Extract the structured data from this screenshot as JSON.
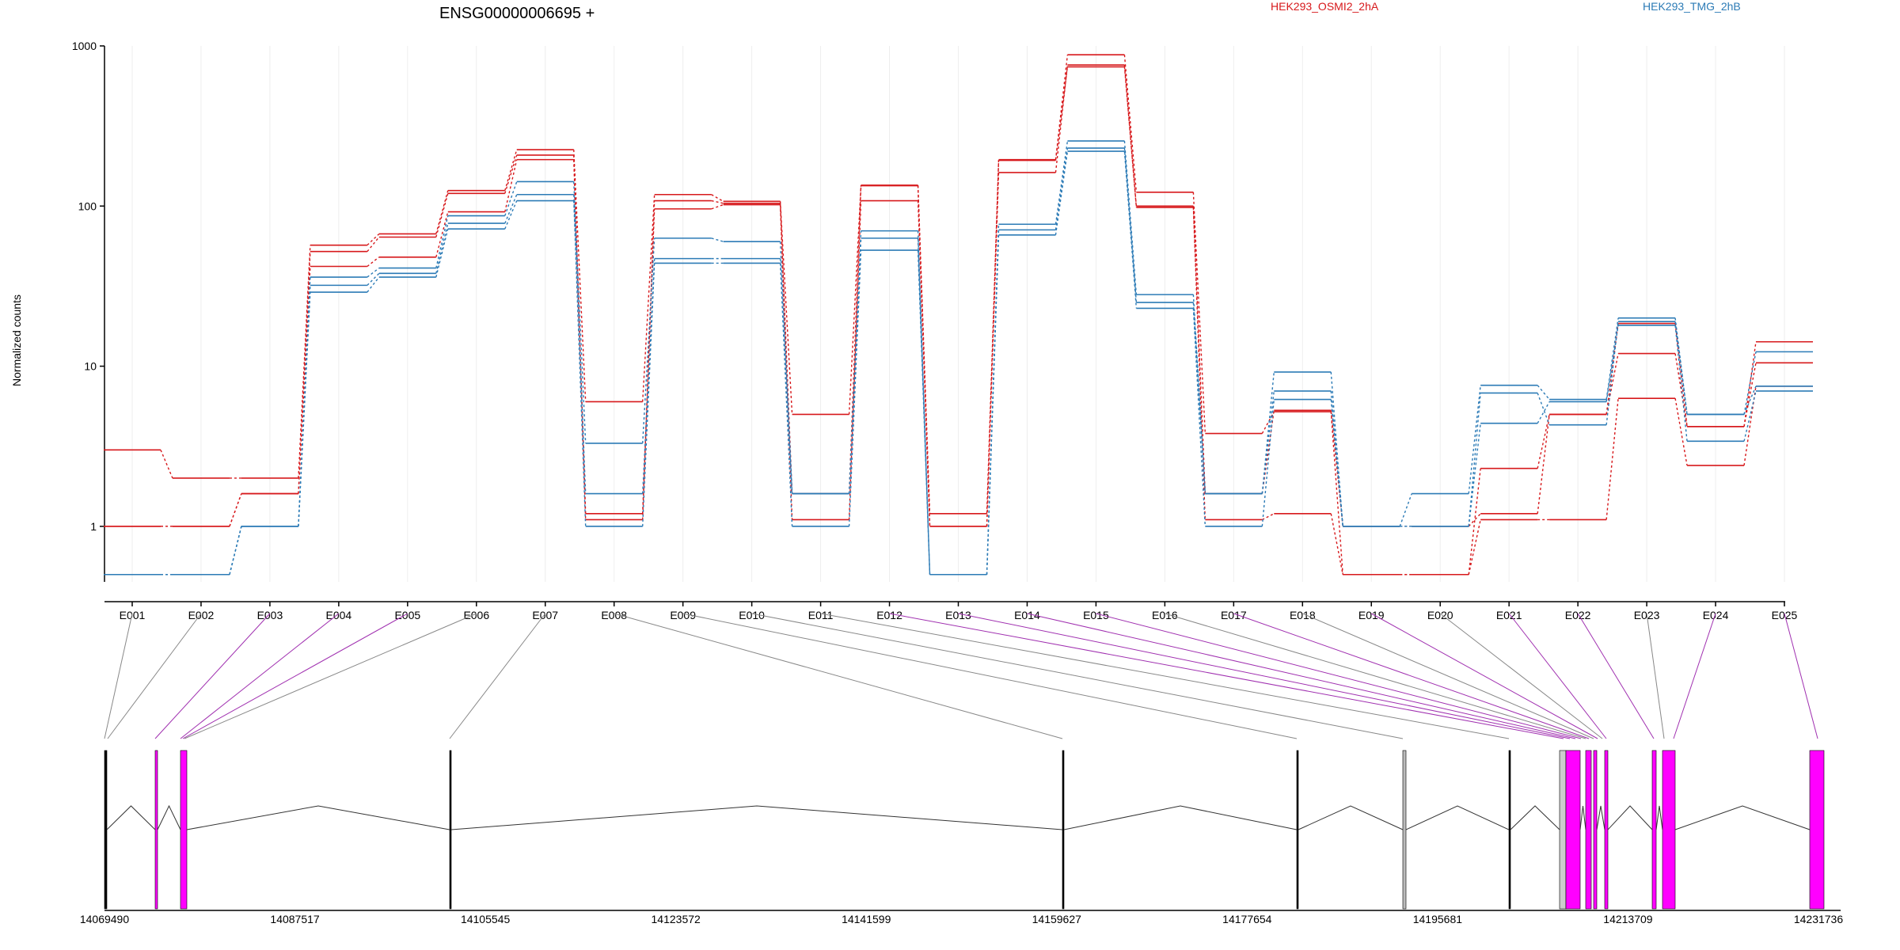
{
  "gene": {
    "title": "ENSG00000006695 +"
  },
  "legend": {
    "entries": [
      {
        "label": "HEK293_OSMI2_2hA",
        "color": "#d7191c"
      },
      {
        "label": "HEK293_TMG_2hB",
        "color": "#2c7bb6"
      }
    ]
  },
  "chart_data": {
    "type": "line",
    "ylabel": "Normalized counts",
    "yscale": "log",
    "ylim": [
      0.45,
      1000
    ],
    "yticks": [
      "1",
      "10",
      "100",
      "1000"
    ],
    "categories": [
      "E001",
      "E002",
      "E003",
      "E004",
      "E005",
      "E006",
      "E007",
      "E008",
      "E009",
      "E010",
      "E011",
      "E012",
      "E013",
      "E014",
      "E015",
      "E016",
      "E017",
      "E018",
      "E019",
      "E020",
      "E021",
      "E022",
      "E023",
      "E024",
      "E025"
    ],
    "series": [
      {
        "group": "HEK293_OSMI2_2hA",
        "values": [
          3.0,
          2.0,
          2.0,
          57,
          67,
          125,
          225,
          6.0,
          118,
          107,
          5.0,
          135,
          1.2,
          195,
          880,
          122,
          3.8,
          5.2,
          0.5,
          0.5,
          2.3,
          5.0,
          18.5,
          4.2,
          14.2
        ]
      },
      {
        "group": "HEK293_OSMI2_2hA",
        "values": [
          1.0,
          1.0,
          1.6,
          52,
          64,
          120,
          208,
          1.1,
          108,
          104,
          1.6,
          134,
          1.0,
          193,
          740,
          100,
          1.6,
          5.3,
          1.0,
          1.0,
          1.2,
          5.0,
          12.0,
          4.2,
          10.5
        ]
      },
      {
        "group": "HEK293_OSMI2_2hA",
        "values": [
          1.0,
          1.0,
          1.6,
          42,
          48,
          92,
          195,
          1.2,
          96,
          102,
          1.1,
          108,
          1.0,
          162,
          760,
          98,
          1.1,
          1.2,
          0.5,
          0.5,
          1.1,
          1.1,
          6.3,
          2.4,
          7.5
        ]
      },
      {
        "group": "HEK293_TMG_2hB",
        "values": [
          0.5,
          0.5,
          1.0,
          36,
          41,
          87,
          142,
          3.3,
          63,
          60,
          1.6,
          70,
          0.5,
          77,
          255,
          28,
          1.6,
          9.2,
          1.0,
          1.6,
          7.6,
          6.2,
          20,
          5.0,
          12.3
        ]
      },
      {
        "group": "HEK293_TMG_2hB",
        "values": [
          0.5,
          0.5,
          1.0,
          32,
          38,
          78,
          118,
          1.6,
          47,
          47,
          1.6,
          63,
          0.5,
          71,
          230,
          25,
          1.6,
          7.0,
          1.0,
          1.0,
          6.8,
          4.3,
          19,
          5.0,
          7.5
        ]
      },
      {
        "group": "HEK293_TMG_2hB",
        "values": [
          0.5,
          0.5,
          1.0,
          29,
          36,
          72,
          108,
          1.0,
          44,
          44,
          1.0,
          53,
          0.5,
          66,
          220,
          23,
          1.0,
          6.2,
          1.0,
          1.0,
          4.4,
          6.0,
          18,
          3.4,
          7.0
        ]
      }
    ],
    "genome_axis": {
      "tick_labels": [
        "14069490",
        "14087517",
        "14105545",
        "14123572",
        "14141599",
        "14159627",
        "14177654",
        "14195681",
        "14213709",
        "14231736"
      ]
    }
  }
}
